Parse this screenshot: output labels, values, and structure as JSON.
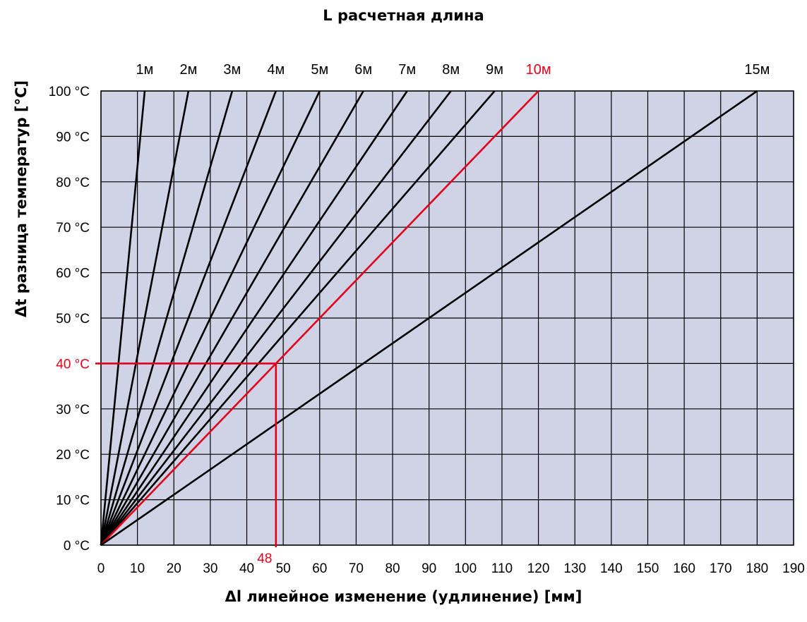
{
  "chart_data": {
    "type": "line",
    "title": "L расчетная длина",
    "xlabel": "Δl линейное изменение (удлинение) [мм]",
    "ylabel": "Δt  разница температур [°С]",
    "xlim": [
      0,
      190
    ],
    "ylim": [
      0,
      100
    ],
    "x_ticks": [
      "0",
      "10",
      "20",
      "30",
      "40",
      "50",
      "60",
      "70",
      "80",
      "90",
      "100",
      "110",
      "120",
      "130",
      "140",
      "150",
      "160",
      "170",
      "180",
      "190"
    ],
    "y_ticks": [
      "0 °С",
      "10 °С",
      "20 °С",
      "30 °С",
      "40 °С",
      "50 °С",
      "60 °С",
      "70 °С",
      "80 °С",
      "90 °С",
      "100 °С"
    ],
    "grid": true,
    "series": [
      {
        "name": "1м",
        "x": [
          0,
          12
        ],
        "y": [
          0,
          100
        ]
      },
      {
        "name": "2м",
        "x": [
          0,
          24
        ],
        "y": [
          0,
          100
        ]
      },
      {
        "name": "3м",
        "x": [
          0,
          36
        ],
        "y": [
          0,
          100
        ]
      },
      {
        "name": "4м",
        "x": [
          0,
          48
        ],
        "y": [
          0,
          100
        ]
      },
      {
        "name": "5м",
        "x": [
          0,
          60
        ],
        "y": [
          0,
          100
        ]
      },
      {
        "name": "6м",
        "x": [
          0,
          72
        ],
        "y": [
          0,
          100
        ]
      },
      {
        "name": "7м",
        "x": [
          0,
          84
        ],
        "y": [
          0,
          100
        ]
      },
      {
        "name": "8м",
        "x": [
          0,
          96
        ],
        "y": [
          0,
          100
        ]
      },
      {
        "name": "9м",
        "x": [
          0,
          108
        ],
        "y": [
          0,
          100
        ]
      },
      {
        "name": "10м",
        "x": [
          0,
          120
        ],
        "y": [
          0,
          100
        ],
        "highlight": true
      },
      {
        "name": "15м",
        "x": [
          0,
          180
        ],
        "y": [
          0,
          100
        ]
      }
    ],
    "annotations": {
      "x_value": 48,
      "x_label": "48",
      "y_value": 40,
      "y_label": "40 °С"
    },
    "colors": {
      "plot_background": "#d0d3e6",
      "lines": "#000000",
      "highlight": "#e3001b",
      "grid": "#000000"
    }
  }
}
